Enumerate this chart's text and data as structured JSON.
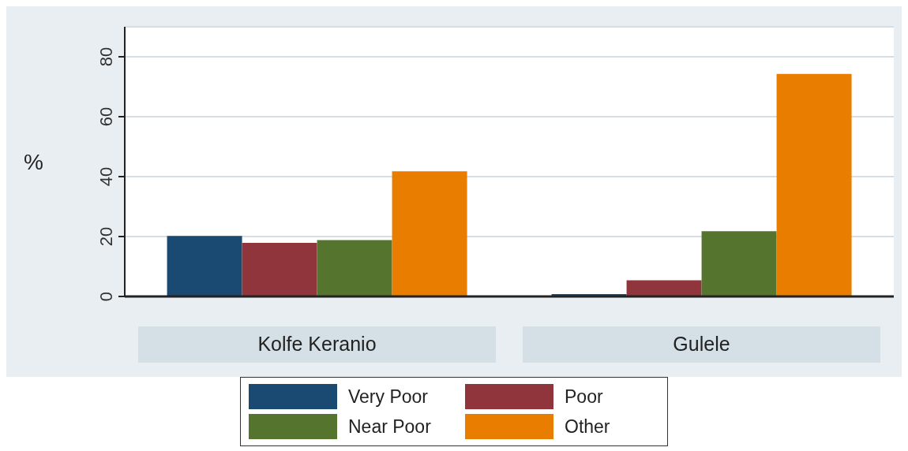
{
  "chart_data": {
    "type": "bar",
    "ylabel": "%",
    "categories": [
      "Kolfe Keranio",
      "Gulele"
    ],
    "ylim": [
      0,
      90
    ],
    "yticks": [
      0,
      20,
      40,
      60,
      80
    ],
    "grid": "y",
    "legend": "bottom",
    "series": [
      {
        "name": "Very Poor",
        "color": "#1a4a72",
        "values": [
          20.2,
          0.8
        ]
      },
      {
        "name": "Poor",
        "color": "#90353b",
        "values": [
          17.9,
          5.4
        ]
      },
      {
        "name": "Near Poor",
        "color": "#55752f",
        "values": [
          18.8,
          21.8
        ]
      },
      {
        "name": "Other",
        "color": "#e87d00",
        "values": [
          41.8,
          74.3
        ]
      }
    ]
  }
}
